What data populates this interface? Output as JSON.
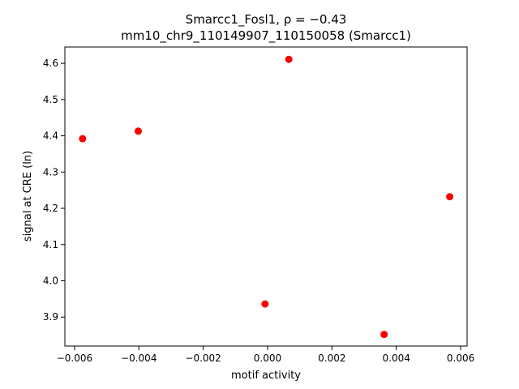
{
  "chart_data": {
    "type": "scatter",
    "title_line1": "Smarcc1_Fosl1, ρ = −0.43",
    "title_line2": "mm10_chr9_110149907_110150058 (Smarcc1)",
    "xlabel": "motif activity",
    "ylabel": "signal at CRE (ln)",
    "xlim": [
      -0.0063,
      0.0062
    ],
    "ylim": [
      3.82,
      4.645
    ],
    "xticks": [
      -0.006,
      -0.004,
      -0.002,
      0.0,
      0.002,
      0.004,
      0.006
    ],
    "xtick_labels": [
      "−0.006",
      "−0.004",
      "−0.002",
      "0.000",
      "0.002",
      "0.004",
      "0.006"
    ],
    "yticks": [
      3.9,
      4.0,
      4.1,
      4.2,
      4.3,
      4.4,
      4.5,
      4.6
    ],
    "ytick_labels": [
      "3.9",
      "4.0",
      "4.1",
      "4.2",
      "4.3",
      "4.4",
      "4.5",
      "4.6"
    ],
    "marker_color": "#ff0000",
    "points": [
      {
        "x": -0.00575,
        "y": 4.392
      },
      {
        "x": -0.00402,
        "y": 4.413
      },
      {
        "x": -8e-05,
        "y": 3.936
      },
      {
        "x": 0.00066,
        "y": 4.611
      },
      {
        "x": 0.00362,
        "y": 3.852
      },
      {
        "x": 0.00566,
        "y": 4.232
      }
    ]
  }
}
